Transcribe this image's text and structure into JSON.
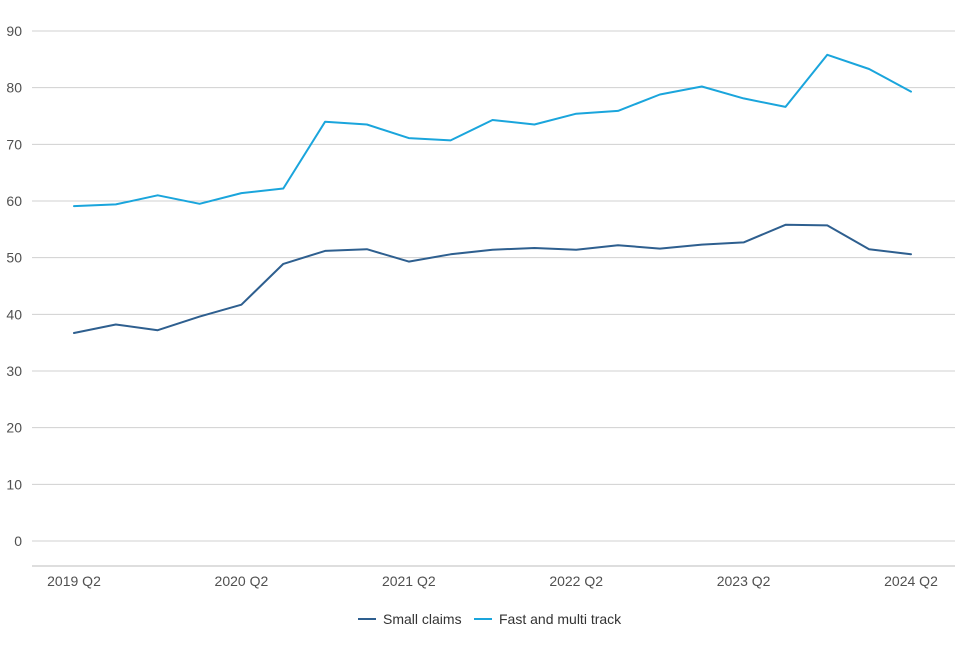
{
  "chart_data": {
    "type": "line",
    "x": [
      "2019 Q2",
      "2019 Q3",
      "2019 Q4",
      "2020 Q1",
      "2020 Q2",
      "2020 Q3",
      "2020 Q4",
      "2021 Q1",
      "2021 Q2",
      "2021 Q3",
      "2021 Q4",
      "2022 Q1",
      "2022 Q2",
      "2022 Q3",
      "2022 Q4",
      "2023 Q1",
      "2023 Q2",
      "2023 Q3",
      "2023 Q4",
      "2024 Q1",
      "2024 Q2"
    ],
    "x_tick_labels": [
      "2019 Q2",
      "2020 Q2",
      "2021 Q2",
      "2022 Q2",
      "2023 Q2",
      "2024 Q2"
    ],
    "ylim": [
      0,
      90
    ],
    "y_ticks": [
      0,
      10,
      20,
      30,
      40,
      50,
      60,
      70,
      80,
      90
    ],
    "grid": "horizontal",
    "legend_position": "bottom",
    "series": [
      {
        "name": "Small claims",
        "color": "#2e5f8f",
        "values": [
          36.7,
          38.2,
          37.2,
          39.6,
          41.7,
          48.9,
          51.2,
          51.5,
          49.3,
          50.6,
          51.4,
          51.7,
          51.4,
          52.2,
          51.6,
          52.3,
          52.7,
          55.8,
          55.7,
          51.5,
          50.6
        ]
      },
      {
        "name": "Fast and multi track",
        "color": "#1aa5dc",
        "values": [
          59.1,
          59.4,
          61.0,
          59.5,
          61.4,
          62.2,
          74.0,
          73.5,
          71.1,
          70.7,
          74.3,
          73.5,
          75.4,
          75.9,
          78.8,
          80.2,
          78.1,
          76.6,
          85.8,
          83.3,
          79.3
        ]
      }
    ]
  }
}
